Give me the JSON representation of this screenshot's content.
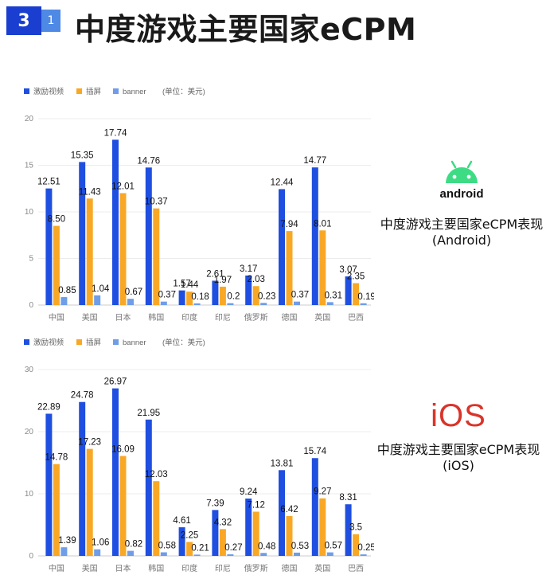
{
  "header": {
    "section_number": "3",
    "sub_number": "1",
    "title": "中度游戏主要国家eCPM"
  },
  "android_panel": {
    "logo_text": "android",
    "caption_line1": "中度游戏主要国家eCPM表现",
    "caption_line2": "(Android)"
  },
  "ios_panel": {
    "logo_text": "iOS",
    "caption_line1": "中度游戏主要国家eCPM表现",
    "caption_line2": "(iOS)"
  },
  "colors": {
    "rewarded_video": "#1f4fe0",
    "interstitial": "#f9a825",
    "banner": "#6f9de8",
    "android_green": "#3ddc84",
    "ios_red": "#d9342b"
  },
  "chart_data": [
    {
      "type": "bar",
      "unit_note": "(单位：美元)",
      "categories": [
        "中国",
        "美国",
        "日本",
        "韩国",
        "印度",
        "印尼",
        "俄罗斯",
        "德国",
        "英国",
        "巴西"
      ],
      "ylim": [
        0,
        20
      ],
      "yticks": [
        0,
        5,
        10,
        15,
        20
      ],
      "series": [
        {
          "name": "激励视频",
          "values": [
            12.51,
            15.35,
            17.74,
            14.76,
            1.57,
            2.61,
            3.17,
            12.44,
            14.77,
            3.07
          ],
          "labels": [
            "12.51",
            "15.35",
            "17.74",
            "14.76",
            "1.57",
            "2.61",
            "3.17",
            "12.44",
            "14.77",
            "3.07"
          ]
        },
        {
          "name": "插屏",
          "values": [
            8.5,
            11.43,
            12.01,
            10.37,
            1.44,
            1.97,
            2.03,
            7.94,
            8.01,
            2.35
          ],
          "labels": [
            "8.50",
            "11.43",
            "12.01",
            "10.37",
            "1.44",
            "1.97",
            "2.03",
            "7.94",
            "8.01",
            "2.35"
          ]
        },
        {
          "name": "banner",
          "values": [
            0.85,
            1.04,
            0.67,
            0.37,
            0.18,
            0.2,
            0.23,
            0.37,
            0.31,
            0.19
          ],
          "labels": [
            "0.85",
            "1.04",
            "0.67",
            "0.37",
            "0.18",
            "0.2",
            "0.23",
            "0.37",
            "0.31",
            "0.19"
          ]
        }
      ]
    },
    {
      "type": "bar",
      "unit_note": "(单位：美元)",
      "categories": [
        "中国",
        "美国",
        "日本",
        "韩国",
        "印度",
        "印尼",
        "俄罗斯",
        "德国",
        "英国",
        "巴西"
      ],
      "ylim": [
        0,
        30
      ],
      "yticks": [
        0,
        10,
        20,
        30
      ],
      "series": [
        {
          "name": "激励视频",
          "values": [
            22.89,
            24.78,
            26.97,
            21.95,
            4.61,
            7.39,
            9.24,
            13.81,
            15.74,
            8.31
          ],
          "labels": [
            "22.89",
            "24.78",
            "26.97",
            "21.95",
            "4.61",
            "7.39",
            "9.24",
            "13.81",
            "15.74",
            "8.31"
          ]
        },
        {
          "name": "插屏",
          "values": [
            14.78,
            17.23,
            16.09,
            12.03,
            2.25,
            4.32,
            7.12,
            6.42,
            9.27,
            3.5
          ],
          "labels": [
            "14.78",
            "17.23",
            "16.09",
            "12.03",
            "2.25",
            "4.32",
            "7.12",
            "6.42",
            "9.27",
            "3.5"
          ]
        },
        {
          "name": "banner",
          "values": [
            1.39,
            1.06,
            0.82,
            0.58,
            0.21,
            0.27,
            0.48,
            0.53,
            0.57,
            0.25
          ],
          "labels": [
            "1.39",
            "1.06",
            "0.82",
            "0.58",
            "0.21",
            "0.27",
            "0.48",
            "0.53",
            "0.57",
            "0.25"
          ]
        }
      ]
    }
  ]
}
